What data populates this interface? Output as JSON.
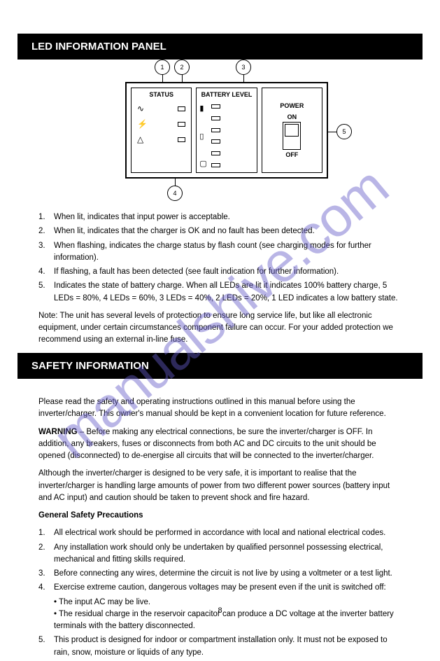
{
  "watermark": "manualshive.com",
  "sections": {
    "top_header": "LED INFORMATION PANEL",
    "bottom_header": "SAFETY INFORMATION"
  },
  "diagram": {
    "panel1_title": "STATUS",
    "panel2_title": "BATTERY LEVEL",
    "panel3_title": "POWER",
    "power_on": "ON",
    "power_off": "OFF",
    "callouts": {
      "c1": "1",
      "c2": "2",
      "c3": "3",
      "c4": "4",
      "c5": "5"
    }
  },
  "led_info": {
    "items": [
      {
        "num": "1.",
        "text": "When lit, indicates that input power is acceptable."
      },
      {
        "num": "2.",
        "text": "When lit, indicates that the charger is OK and no fault has been detected."
      },
      {
        "num": "3.",
        "text": "When flashing, indicates the charge status by flash count (see charging modes for further information)."
      },
      {
        "num": "4.",
        "text": "If flashing, a fault has been detected (see fault indication for further information)."
      },
      {
        "num": "5.",
        "text": "Indicates the state of battery charge. When all LEDs are lit it indicates 100% battery charge, 5 LEDs = 80%, 4 LEDs = 60%, 3 LEDs = 40%, 2 LEDs = 20%, 1 LED indicates a low battery state."
      }
    ],
    "footer": "Note: The unit has several levels of protection to ensure long service life, but like all electronic equipment, under certain circumstances component failure can occur. For your added protection we recommend using an external in-line fuse."
  },
  "safety": {
    "p1": "Please read the safety and operating instructions outlined in this manual before using the inverter/charger. This owner's manual should be kept in a convenient location for future reference.",
    "p2_label": "WARNING",
    "p2": " – Before making any electrical connections, be sure the inverter/charger is OFF. In addition, any breakers, fuses or disconnects from both AC and DC circuits to the unit should be opened (disconnected) to de-energise all circuits that will be connected to the inverter/charger.",
    "p3": "Although the inverter/charger is designed to be very safe, it is important to realise that the inverter/charger is handling large amounts of power from two different power sources (battery input and AC input) and caution should be taken to prevent shock and fire hazard.",
    "heading": "General Safety Precautions",
    "g1": {
      "num": "1.",
      "text": "All electrical work should be performed in accordance with local and national electrical codes."
    },
    "g2": {
      "num": "2.",
      "text": "Any installation work should only be undertaken by qualified personnel possessing electrical, mechanical and fitting skills required."
    },
    "g3": {
      "num": "3.",
      "text": "Before connecting any wires, determine the circuit is not live by using a voltmeter or a test light."
    },
    "g4": {
      "num": "4.",
      "text": "Exercise extreme caution, dangerous voltages may be present even if the unit is switched off:"
    },
    "g4a": "• The input AC may be live.",
    "g4b": "• The residual charge in the reservoir capacitor can produce a DC voltage at the inverter battery terminals with the battery disconnected.",
    "g5": {
      "num": "5.",
      "text": "This product is designed for indoor or compartment installation only. It must not be exposed to rain, snow, moisture or liquids of any type."
    }
  },
  "page": "8"
}
